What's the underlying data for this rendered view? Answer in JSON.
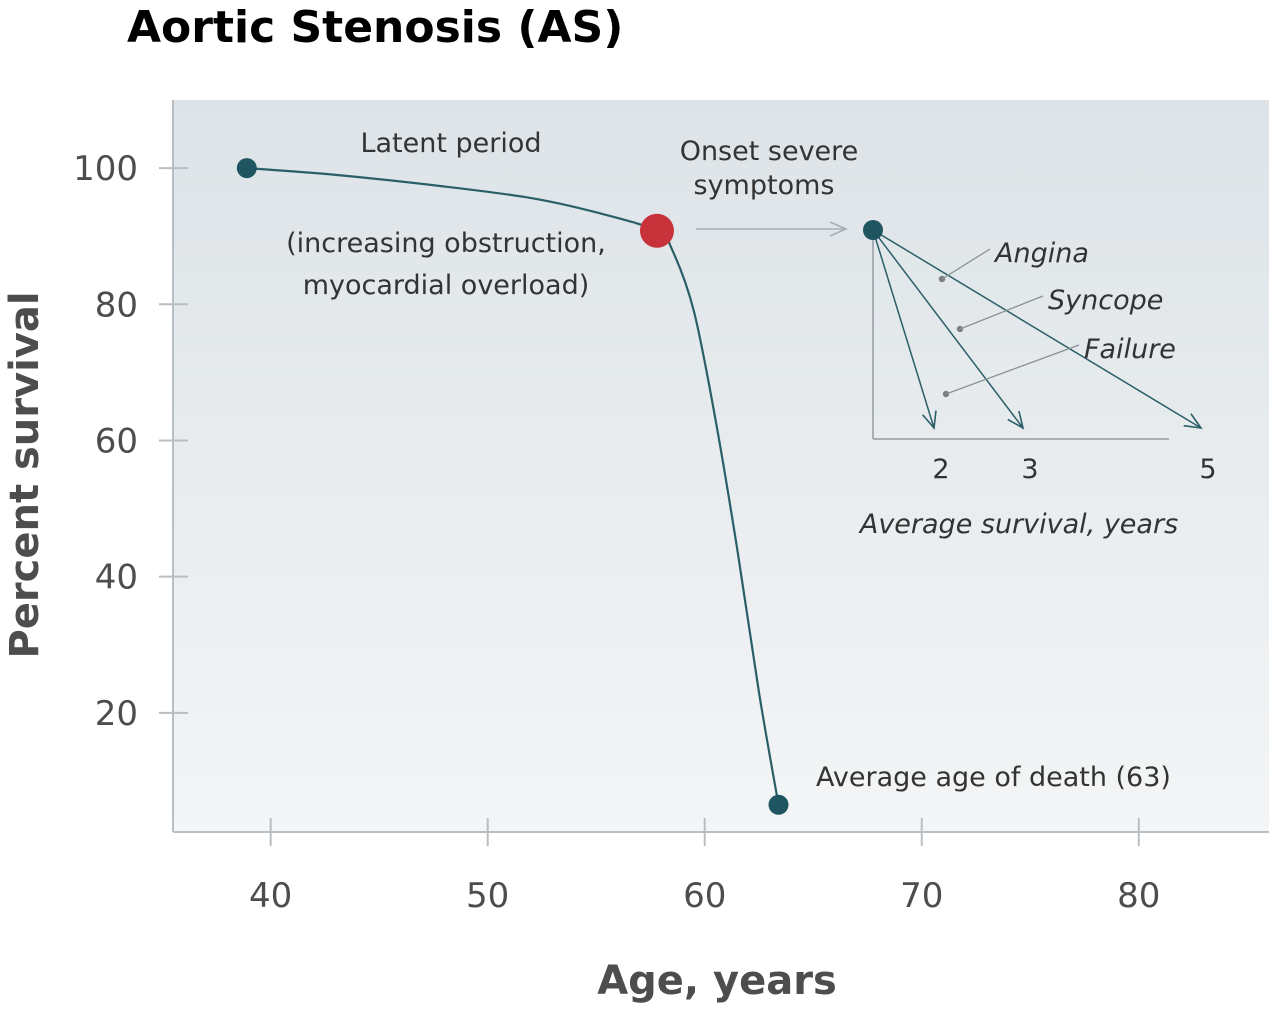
{
  "chart_data": {
    "type": "line",
    "title": "Aortic Stenosis (AS)",
    "xlabel": "Age, years",
    "ylabel": "Percent survival",
    "xlim": [
      35.5,
      86
    ],
    "ylim": [
      2.5,
      110
    ],
    "x_ticks": [
      40,
      50,
      60,
      70,
      80
    ],
    "y_ticks": [
      20,
      40,
      60,
      80,
      100
    ],
    "grid": false,
    "series": [
      {
        "x": [
          38.9,
          43,
          48,
          52,
          55,
          57.8,
          58.5,
          59.5,
          60.5,
          61.5,
          62.5,
          63.4
        ],
        "y": [
          100,
          99,
          97.3,
          95.6,
          93.5,
          90.8,
          88,
          79,
          63,
          44,
          23,
          6.5
        ],
        "color": "#2a5f68"
      }
    ],
    "points": [
      {
        "name": "start",
        "x": 38.9,
        "y": 100,
        "color": "#1f5560"
      },
      {
        "name": "onset",
        "x": 57.8,
        "y": 90.8,
        "color": "#c8323a"
      },
      {
        "name": "death",
        "x": 63.4,
        "y": 6.5,
        "color": "#1f5560"
      }
    ],
    "annotations": {
      "latent_period": "Latent period",
      "obstruction_line1": "(increasing obstruction,",
      "obstruction_line2": "myocardial overload)",
      "onset_line1": "Onset severe",
      "onset_line2": "symptoms",
      "death": "Average age of death (63)"
    },
    "inset": {
      "xlabel": "Average survival, years",
      "x_ticks": [
        2,
        3,
        5
      ],
      "series": [
        {
          "name": "Angina",
          "survival_years": 5
        },
        {
          "name": "Syncope",
          "survival_years": 3
        },
        {
          "name": "Failure",
          "survival_years": 2
        }
      ]
    }
  }
}
